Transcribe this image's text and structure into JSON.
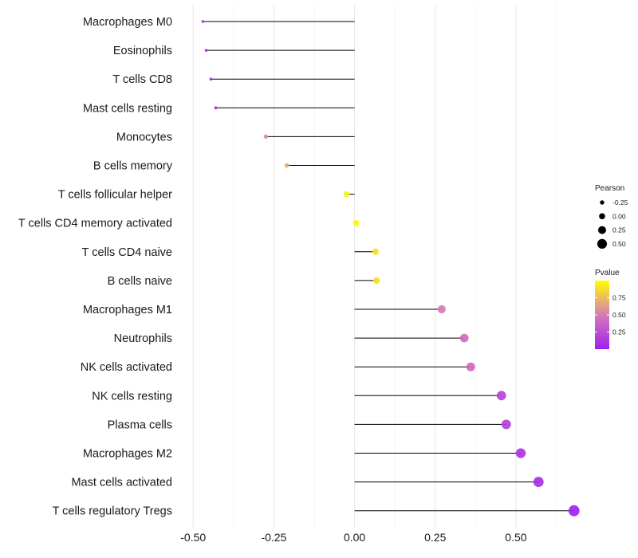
{
  "chart_data": {
    "type": "lollipop",
    "title": "",
    "xlabel": "",
    "ylabel": "",
    "xlim": [
      -0.55,
      0.73
    ],
    "xticks": [
      -0.5,
      -0.25,
      0.0,
      0.25,
      0.5
    ],
    "xtick_labels": [
      "-0.50",
      "-0.25",
      "0.00",
      "0.25",
      "0.50"
    ],
    "grid": true,
    "baseline": 0,
    "points": [
      {
        "label": "Macrophages M0",
        "pearson": -0.47,
        "pvalue": 0.02
      },
      {
        "label": "Eosinophils",
        "pearson": -0.46,
        "pvalue": 0.03
      },
      {
        "label": "T cells CD8",
        "pearson": -0.445,
        "pvalue": 0.04
      },
      {
        "label": "Mast cells resting",
        "pearson": -0.43,
        "pvalue": 0.05
      },
      {
        "label": "Monocytes",
        "pearson": -0.275,
        "pvalue": 0.55
      },
      {
        "label": "B cells memory",
        "pearson": -0.21,
        "pvalue": 0.7
      },
      {
        "label": "T cells follicular helper",
        "pearson": -0.025,
        "pvalue": 0.95
      },
      {
        "label": "T cells CD4 memory activated",
        "pearson": 0.005,
        "pvalue": 0.98
      },
      {
        "label": "T cells CD4 naive",
        "pearson": 0.065,
        "pvalue": 0.88
      },
      {
        "label": "B cells naive",
        "pearson": 0.068,
        "pvalue": 0.87
      },
      {
        "label": "Macrophages M1",
        "pearson": 0.27,
        "pvalue": 0.5
      },
      {
        "label": "Neutrophils",
        "pearson": 0.34,
        "pvalue": 0.42
      },
      {
        "label": "NK cells activated",
        "pearson": 0.36,
        "pvalue": 0.4
      },
      {
        "label": "NK cells resting",
        "pearson": 0.455,
        "pvalue": 0.2
      },
      {
        "label": "Plasma cells",
        "pearson": 0.47,
        "pvalue": 0.18
      },
      {
        "label": "Macrophages M2",
        "pearson": 0.515,
        "pvalue": 0.12
      },
      {
        "label": "Mast cells activated",
        "pearson": 0.57,
        "pvalue": 0.08
      },
      {
        "label": "T cells regulatory  Tregs",
        "pearson": 0.68,
        "pvalue": 0.01
      }
    ],
    "legend": {
      "size": {
        "title": "Pearson",
        "entries": [
          {
            "label": "-0.25",
            "value": -0.25
          },
          {
            "label": "0.00",
            "value": 0.0
          },
          {
            "label": "0.25",
            "value": 0.25
          },
          {
            "label": "0.50",
            "value": 0.5
          }
        ]
      },
      "color": {
        "title": "Pvalue",
        "ticks": [
          {
            "label": "0.75",
            "value": 0.75
          },
          {
            "label": "0.50",
            "value": 0.5
          },
          {
            "label": "0.25",
            "value": 0.25
          }
        ],
        "range": [
          0.0,
          1.0
        ],
        "low_color": "#a020f0",
        "high_color": "#ffff00"
      }
    }
  }
}
